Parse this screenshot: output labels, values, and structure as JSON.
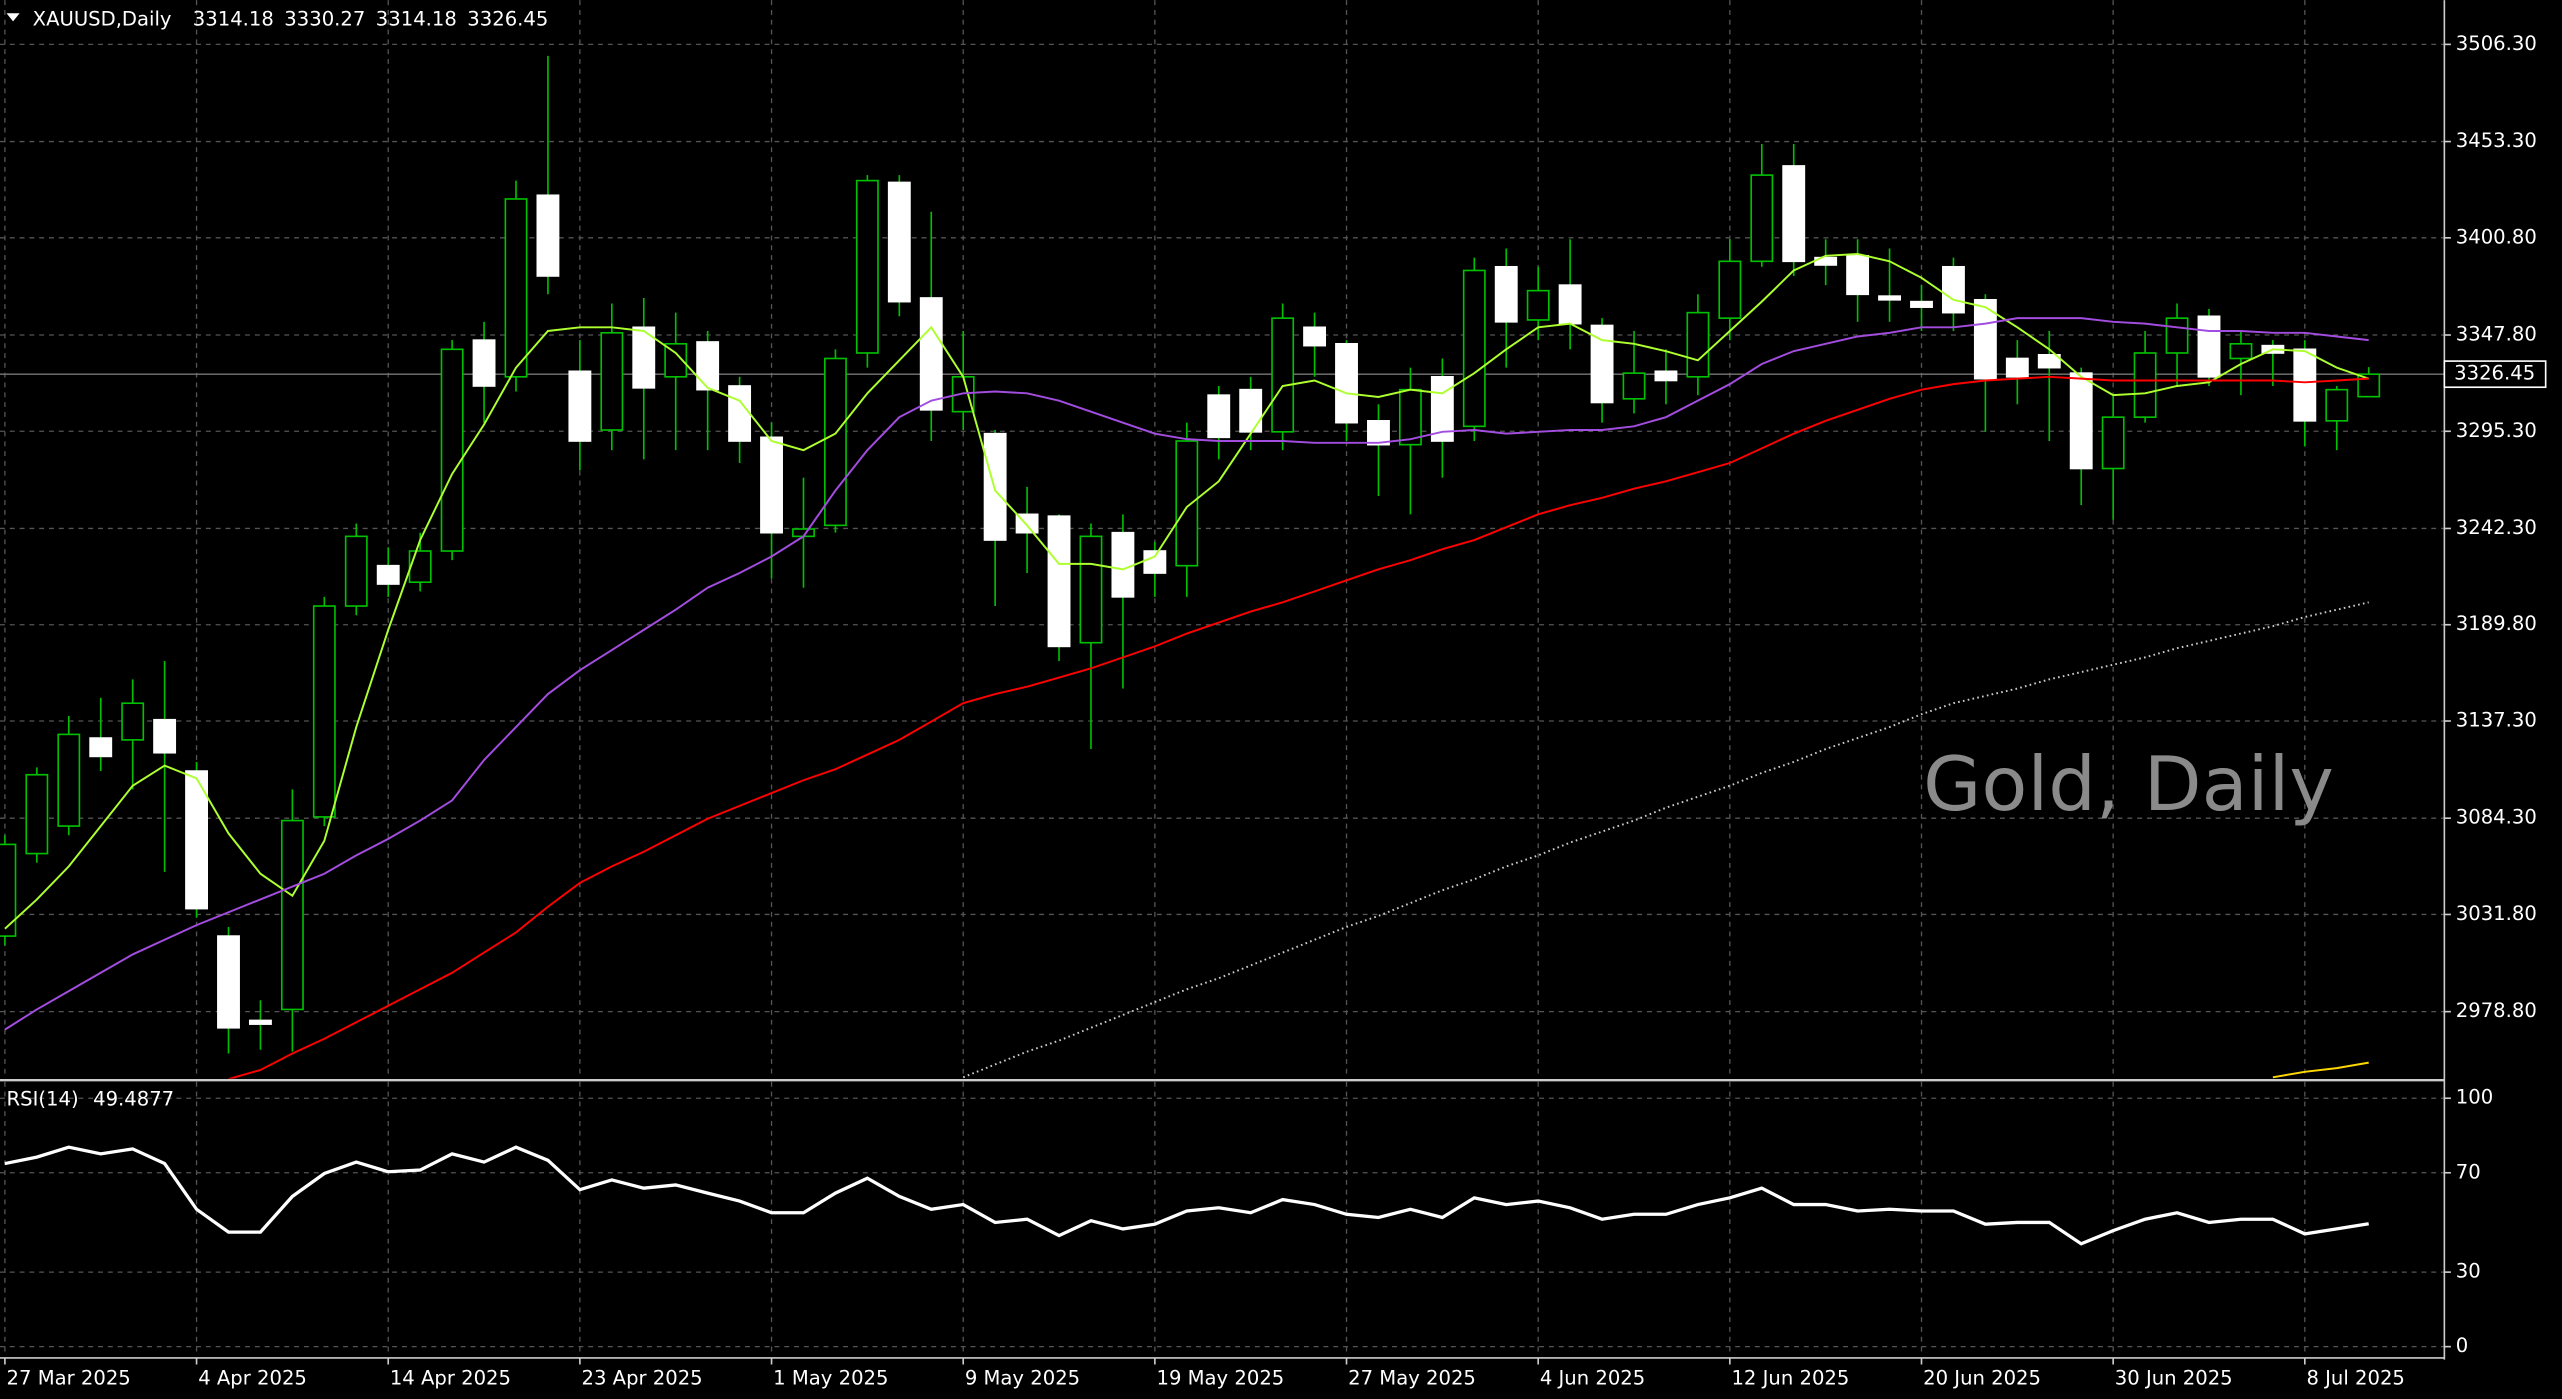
{
  "chart_data": [
    {
      "type": "candlestick",
      "symbol": "XAUUSD,Daily",
      "watermark": "Gold, Daily",
      "bull_color": "#00c000",
      "bear_color": "#ffffff",
      "wick_color": "#00c000",
      "grid": true,
      "categories": [
        "27 Mar 2025",
        null,
        null,
        null,
        null,
        null,
        "4 Apr 2025",
        null,
        null,
        null,
        null,
        null,
        "14 Apr 2025",
        null,
        null,
        null,
        null,
        null,
        "23 Apr 2025",
        null,
        null,
        null,
        null,
        null,
        "1 May 2025",
        null,
        null,
        null,
        null,
        null,
        "9 May 2025",
        null,
        null,
        null,
        null,
        null,
        "19 May 2025",
        null,
        null,
        null,
        null,
        null,
        "27 May 2025",
        null,
        null,
        null,
        null,
        null,
        "4 Jun 2025",
        null,
        null,
        null,
        null,
        null,
        "12 Jun 2025",
        null,
        null,
        null,
        null,
        null,
        "20 Jun 2025",
        null,
        null,
        null,
        null,
        null,
        "30 Jun 2025",
        null,
        null,
        null,
        null,
        null,
        "8 Jul 2025",
        null,
        null
      ],
      "open": [
        3020,
        3065,
        3080,
        3128,
        3127,
        3138,
        3110,
        3020,
        2974,
        2980,
        3085,
        3200,
        3222,
        3213,
        3230,
        3345,
        3325,
        3424,
        3328,
        3296,
        3352,
        3325,
        3344,
        3320,
        3292,
        3238,
        3244,
        3338,
        3431,
        3368,
        3306,
        3294,
        3250,
        3249,
        3180,
        3240,
        3230,
        3222,
        3315,
        3318,
        3295,
        3352,
        3343,
        3301,
        3288,
        3325,
        3298,
        3385,
        3356,
        3375,
        3353,
        3313,
        3328,
        3325,
        3357,
        3388,
        3440,
        3390,
        3391,
        3369,
        3366,
        3385,
        3367,
        3335,
        3337,
        3327,
        3275,
        3303,
        3338,
        3358,
        3335,
        3342,
        3340,
        3301,
        3314.18
      ],
      "high": [
        3075,
        3112,
        3140,
        3150,
        3160,
        3170,
        3115,
        3025,
        2985,
        3100,
        3205,
        3245,
        3232,
        3240,
        3345,
        3355,
        3432,
        3500,
        3345,
        3365,
        3368,
        3360,
        3350,
        3325,
        3300,
        3270,
        3340,
        3435,
        3435,
        3415,
        3350,
        3296,
        3265,
        3250,
        3245,
        3250,
        3235,
        3300,
        3320,
        3325,
        3365,
        3360,
        3345,
        3310,
        3330,
        3335,
        3390,
        3395,
        3385,
        3400,
        3357,
        3350,
        3340,
        3370,
        3400,
        3452,
        3452,
        3400,
        3400,
        3395,
        3375,
        3390,
        3370,
        3345,
        3350,
        3330,
        3315,
        3350,
        3365,
        3362,
        3350,
        3345,
        3345,
        3320,
        3330.27
      ],
      "low": [
        3015,
        3060,
        3075,
        3110,
        3100,
        3055,
        3030,
        2956,
        2958,
        2957,
        3080,
        3195,
        3205,
        3208,
        3225,
        3300,
        3317,
        3370,
        3274,
        3285,
        3280,
        3285,
        3285,
        3278,
        3215,
        3210,
        3240,
        3330,
        3358,
        3290,
        3296,
        3200,
        3218,
        3170,
        3122,
        3155,
        3205,
        3205,
        3280,
        3285,
        3285,
        3325,
        3290,
        3260,
        3250,
        3270,
        3290,
        3330,
        3345,
        3340,
        3300,
        3305,
        3310,
        3315,
        3345,
        3385,
        3380,
        3375,
        3355,
        3355,
        3350,
        3350,
        3295,
        3310,
        3290,
        3255,
        3247,
        3300,
        3320,
        3320,
        3315,
        3320,
        3287,
        3285,
        3314.18
      ],
      "close": [
        3070,
        3108,
        3130,
        3118,
        3147,
        3120,
        3035,
        2970,
        2972,
        3083,
        3200,
        3238,
        3212,
        3230,
        3340,
        3320,
        3422,
        3380,
        3290,
        3349,
        3319,
        3343,
        3318,
        3290,
        3240,
        3242,
        3335,
        3432,
        3366,
        3307,
        3325,
        3236,
        3240,
        3178,
        3238,
        3205,
        3218,
        3290,
        3292,
        3295,
        3357,
        3342,
        3300,
        3288,
        3318,
        3290,
        3383,
        3355,
        3372,
        3354,
        3311,
        3327,
        3323,
        3360,
        3388,
        3435,
        3388,
        3386,
        3370,
        3367,
        3363,
        3360,
        3324,
        3325,
        3330,
        3275,
        3303,
        3338,
        3357,
        3325,
        3343,
        3338,
        3301,
        3318,
        3326.45
      ],
      "series": [
        {
          "color": "#adff2f",
          "values": [
            3024,
            3040,
            3058,
            3080,
            3102,
            3113,
            3106,
            3076,
            3054,
            3042,
            3072,
            3134,
            3187,
            3236,
            3272,
            3299,
            3330,
            3350,
            3352,
            3352,
            3350,
            3338,
            3319,
            3312,
            3290,
            3285,
            3294,
            3316,
            3334,
            3352,
            3325,
            3263,
            3244,
            3223,
            3223,
            3220,
            3227,
            3254,
            3268,
            3294,
            3320,
            3323,
            3316,
            3314,
            3318,
            3316,
            3327,
            3340,
            3352,
            3354,
            3345,
            3343,
            3339,
            3334,
            3350,
            3366,
            3383,
            3391,
            3392,
            3388,
            3379,
            3367,
            3363,
            3352,
            3340,
            3325,
            3315,
            3316,
            3320,
            3322,
            3332,
            3340,
            3339,
            3330,
            3324
          ]
        },
        {
          "color": "#a34de0",
          "values": [
            2969,
            2980,
            2990,
            3000,
            3010,
            3018,
            3026,
            3033,
            3040,
            3047,
            3054,
            3064,
            3073,
            3083,
            3094,
            3116,
            3134,
            3152,
            3165,
            3176,
            3187,
            3198,
            3210,
            3218,
            3227,
            3238,
            3263,
            3285,
            3303,
            3312,
            3316,
            3317,
            3316,
            3312,
            3306,
            3300,
            3294,
            3291,
            3290,
            3290,
            3290,
            3289,
            3289,
            3289,
            3291,
            3295,
            3296,
            3294,
            3295,
            3296,
            3296,
            3298,
            3303,
            3312,
            3321,
            3332,
            3339,
            3343,
            3347,
            3349,
            3352,
            3352,
            3354,
            3357,
            3357,
            3357,
            3355,
            3354,
            3352,
            3350,
            3350,
            3349,
            3349,
            3347,
            3345
          ]
        },
        {
          "color": "#ff0000",
          "values": [
            null,
            null,
            null,
            null,
            null,
            null,
            null,
            2942,
            2947,
            2956,
            2964,
            2973,
            2982,
            2991,
            3000,
            3011,
            3022,
            3036,
            3049,
            3058,
            3066,
            3075,
            3084,
            3091,
            3098,
            3105,
            3111,
            3119,
            3127,
            3137,
            3147,
            3152,
            3156,
            3161,
            3166,
            3172,
            3178,
            3185,
            3191,
            3197,
            3202,
            3208,
            3214,
            3220,
            3225,
            3231,
            3236,
            3243,
            3250,
            3255,
            3259,
            3264,
            3268,
            3273,
            3278,
            3286,
            3294,
            3301,
            3307,
            3313,
            3318,
            3321,
            3323,
            3324,
            3325,
            3324,
            3323,
            3323,
            3323,
            3323,
            3323,
            3323,
            3322,
            3323,
            3324
          ]
        },
        {
          "color": "#cccccc",
          "dash": "dotted",
          "values": [
            null,
            null,
            null,
            null,
            null,
            null,
            null,
            null,
            null,
            null,
            null,
            null,
            null,
            null,
            null,
            null,
            null,
            null,
            null,
            null,
            null,
            null,
            null,
            null,
            null,
            null,
            null,
            null,
            null,
            null,
            2943,
            2950,
            2957,
            2963,
            2970,
            2977,
            2984,
            2991,
            2997,
            3004,
            3011,
            3018,
            3025,
            3031,
            3038,
            3045,
            3051,
            3058,
            3064,
            3071,
            3077,
            3083,
            3090,
            3096,
            3102,
            3109,
            3115,
            3122,
            3128,
            3134,
            3141,
            3147,
            3151,
            3155,
            3160,
            3164,
            3168,
            3172,
            3177,
            3181,
            3185,
            3189,
            3194,
            3198,
            3202
          ]
        },
        {
          "color": "#ffd700",
          "values": [
            null,
            null,
            null,
            null,
            null,
            null,
            null,
            null,
            null,
            null,
            null,
            null,
            null,
            null,
            null,
            null,
            null,
            null,
            null,
            null,
            null,
            null,
            null,
            null,
            null,
            null,
            null,
            null,
            null,
            null,
            null,
            null,
            null,
            null,
            null,
            null,
            null,
            null,
            null,
            null,
            null,
            null,
            null,
            null,
            null,
            null,
            null,
            null,
            null,
            null,
            null,
            null,
            null,
            null,
            null,
            null,
            null,
            null,
            null,
            null,
            null,
            null,
            null,
            null,
            null,
            null,
            null,
            null,
            null,
            null,
            null,
            2943,
            2946,
            2948,
            2951
          ]
        }
      ],
      "ylim": [
        2942.3,
        3530.4
      ],
      "yticks": [
        {
          "value": 3506.3,
          "label": "3506.30"
        },
        {
          "value": 3453.3,
          "label": "3453.30"
        },
        {
          "value": 3400.8,
          "label": "3400.80"
        },
        {
          "value": 3347.8,
          "label": "3347.80"
        },
        {
          "value": 3295.3,
          "label": "3295.30"
        },
        {
          "value": 3242.3,
          "label": "3242.30"
        },
        {
          "value": 3189.8,
          "label": "3189.80"
        },
        {
          "value": 3137.3,
          "label": "3137.30"
        },
        {
          "value": 3084.3,
          "label": "3084.30"
        },
        {
          "value": 3031.8,
          "label": "3031.80"
        },
        {
          "value": 2978.8,
          "label": "2978.80"
        }
      ]
    },
    {
      "type": "line",
      "title": "RSI(14)",
      "grid": true,
      "series": [
        {
          "color": "#ffffff",
          "values": [
            73.7,
            76.3,
            80.3,
            77.6,
            79.6,
            73.7,
            55.3,
            46.1,
            46.1,
            60.5,
            69.7,
            74.3,
            70.4,
            71.1,
            77.6,
            74.3,
            80.3,
            75,
            63.2,
            67.1,
            63.8,
            65.1,
            61.8,
            58.6,
            53.9,
            53.9,
            61.8,
            67.8,
            60.5,
            55.3,
            57.2,
            50,
            51.3,
            44.7,
            50.7,
            47.4,
            49.3,
            54.6,
            55.9,
            53.9,
            59.2,
            57.2,
            53.3,
            52,
            55.3,
            52,
            59.9,
            57.2,
            58.6,
            55.9,
            51.3,
            53.3,
            53.3,
            57.2,
            59.9,
            63.8,
            57.2,
            57.2,
            54.6,
            55.3,
            54.6,
            54.6,
            49.3,
            50,
            50,
            41.4,
            46.7,
            51.3,
            53.9,
            50,
            51.3,
            51.3,
            45.4,
            47.4,
            49.4877
          ]
        }
      ],
      "ylim": [
        -3.9,
        106.6
      ],
      "yticks": [
        100,
        70,
        30,
        0
      ]
    }
  ]
}
